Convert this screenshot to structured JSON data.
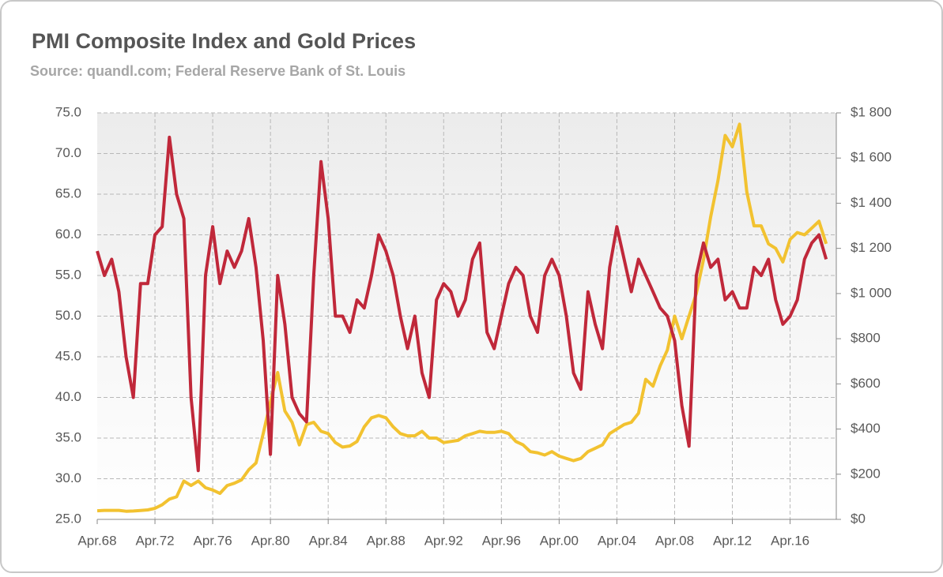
{
  "chart_data": {
    "type": "line",
    "title": "PMI Composite Index and Gold Prices",
    "subtitle": "Source: quandl.com; Federal Reserve Bank of St. Louis",
    "categories": [
      "Apr.68",
      null,
      null,
      null,
      null,
      null,
      null,
      null,
      "Apr.72",
      null,
      null,
      null,
      null,
      null,
      null,
      null,
      "Apr.76",
      null,
      null,
      null,
      null,
      null,
      null,
      null,
      "Apr.80",
      null,
      null,
      null,
      null,
      null,
      null,
      null,
      "Apr.84",
      null,
      null,
      null,
      null,
      null,
      null,
      null,
      "Apr.88",
      null,
      null,
      null,
      null,
      null,
      null,
      null,
      "Apr.92",
      null,
      null,
      null,
      null,
      null,
      null,
      null,
      "Apr.96",
      null,
      null,
      null,
      null,
      null,
      null,
      null,
      "Apr.00",
      null,
      null,
      null,
      null,
      null,
      null,
      null,
      "Apr.04",
      null,
      null,
      null,
      null,
      null,
      null,
      null,
      "Apr.08",
      null,
      null,
      null,
      null,
      null,
      null,
      null,
      "Apr.12",
      null,
      null,
      null,
      null,
      null,
      null,
      null,
      "Apr.16",
      null,
      null,
      null,
      null,
      null
    ],
    "series": [
      {
        "color": "#c0283a",
        "axis": "y",
        "values": [
          58,
          55,
          57,
          53,
          45,
          40,
          54,
          54,
          60,
          61,
          72,
          65,
          62,
          40,
          31,
          55,
          61,
          54,
          58,
          56,
          58,
          62,
          56,
          47,
          33,
          55,
          49,
          40,
          38,
          37,
          55,
          69,
          62,
          50,
          50,
          48,
          52,
          51,
          55,
          60,
          58,
          55,
          50,
          46,
          50,
          43,
          40,
          52,
          54,
          53,
          50,
          52,
          57,
          59,
          48,
          46,
          50,
          54,
          56,
          55,
          50,
          48,
          55,
          57,
          55,
          50,
          43,
          41,
          53,
          49,
          46,
          56,
          61,
          57,
          53,
          57,
          55,
          53,
          51,
          50,
          47,
          39,
          34,
          55,
          59,
          56,
          57,
          52,
          53,
          51,
          51,
          56,
          55,
          57,
          52,
          49,
          50,
          52,
          57,
          59,
          60,
          57
        ]
      },
      {
        "color": "#f2c230",
        "axis": "y2",
        "values": [
          38,
          40,
          40,
          40,
          36,
          37,
          39,
          42,
          49,
          65,
          90,
          100,
          170,
          150,
          170,
          140,
          130,
          115,
          150,
          160,
          175,
          220,
          250,
          380,
          520,
          650,
          480,
          430,
          330,
          420,
          430,
          390,
          380,
          340,
          320,
          325,
          345,
          410,
          450,
          460,
          450,
          410,
          380,
          370,
          370,
          390,
          360,
          360,
          340,
          345,
          350,
          370,
          380,
          390,
          385,
          385,
          390,
          380,
          345,
          330,
          300,
          295,
          285,
          300,
          280,
          270,
          260,
          270,
          300,
          315,
          330,
          380,
          400,
          420,
          430,
          470,
          620,
          590,
          680,
          750,
          900,
          800,
          900,
          1000,
          1150,
          1340,
          1500,
          1700,
          1650,
          1750,
          1450,
          1300,
          1300,
          1220,
          1200,
          1140,
          1240,
          1270,
          1260,
          1290,
          1320,
          1220
        ]
      }
    ],
    "ylim": [
      25,
      75
    ],
    "yticks": [
      {
        "value": 25,
        "label": "25.0"
      },
      {
        "value": 30,
        "label": "30.0"
      },
      {
        "value": 35,
        "label": "35.0"
      },
      {
        "value": 40,
        "label": "40.0"
      },
      {
        "value": 45,
        "label": "45.0"
      },
      {
        "value": 50,
        "label": "50.0"
      },
      {
        "value": 55,
        "label": "55.0"
      },
      {
        "value": 60,
        "label": "60.0"
      },
      {
        "value": 65,
        "label": "65.0"
      },
      {
        "value": 70,
        "label": "70.0"
      },
      {
        "value": 75,
        "label": "75.0"
      }
    ],
    "y2lim": [
      0,
      1800
    ],
    "y2ticks": [
      {
        "value": 0,
        "label": "$0"
      },
      {
        "value": 200,
        "label": "$200"
      },
      {
        "value": 400,
        "label": "$400"
      },
      {
        "value": 600,
        "label": "$600"
      },
      {
        "value": 800,
        "label": "$800"
      },
      {
        "value": 1000,
        "label": "$1 000"
      },
      {
        "value": 1200,
        "label": "$1 200"
      },
      {
        "value": 1400,
        "label": "$1 400"
      },
      {
        "value": 1600,
        "label": "$1 600"
      },
      {
        "value": 1800,
        "label": "$1 800"
      }
    ],
    "grid": true
  }
}
